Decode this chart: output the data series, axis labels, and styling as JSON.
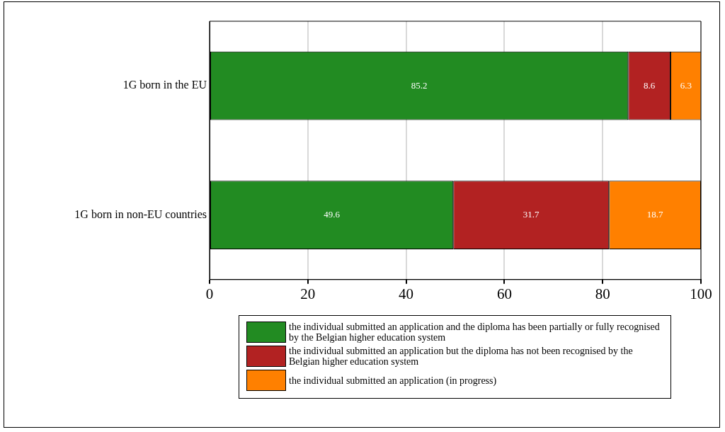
{
  "chart_data": {
    "type": "bar",
    "orientation": "horizontal",
    "stacked": true,
    "categories": [
      "1G born in the EU",
      "1G born in non-EU countries"
    ],
    "series": [
      {
        "name": "the individual submitted an application and the diploma has been partially or fully recognised by the Belgian higher education system",
        "color": "#228b22",
        "values": [
          85.2,
          49.6
        ]
      },
      {
        "name": "the individual submitted an application but the diploma has not been recognised by the Belgian higher education system",
        "color": "#b22222",
        "values": [
          8.6,
          31.7
        ]
      },
      {
        "name": "the individual submitted an application (in progress)",
        "color": "#ff8000",
        "values": [
          6.3,
          18.7
        ]
      }
    ],
    "xlim": [
      0,
      100
    ],
    "xticks": [
      0,
      20,
      40,
      60,
      80,
      100
    ],
    "grid": "x",
    "legend": "bottom",
    "data_labels": true
  }
}
